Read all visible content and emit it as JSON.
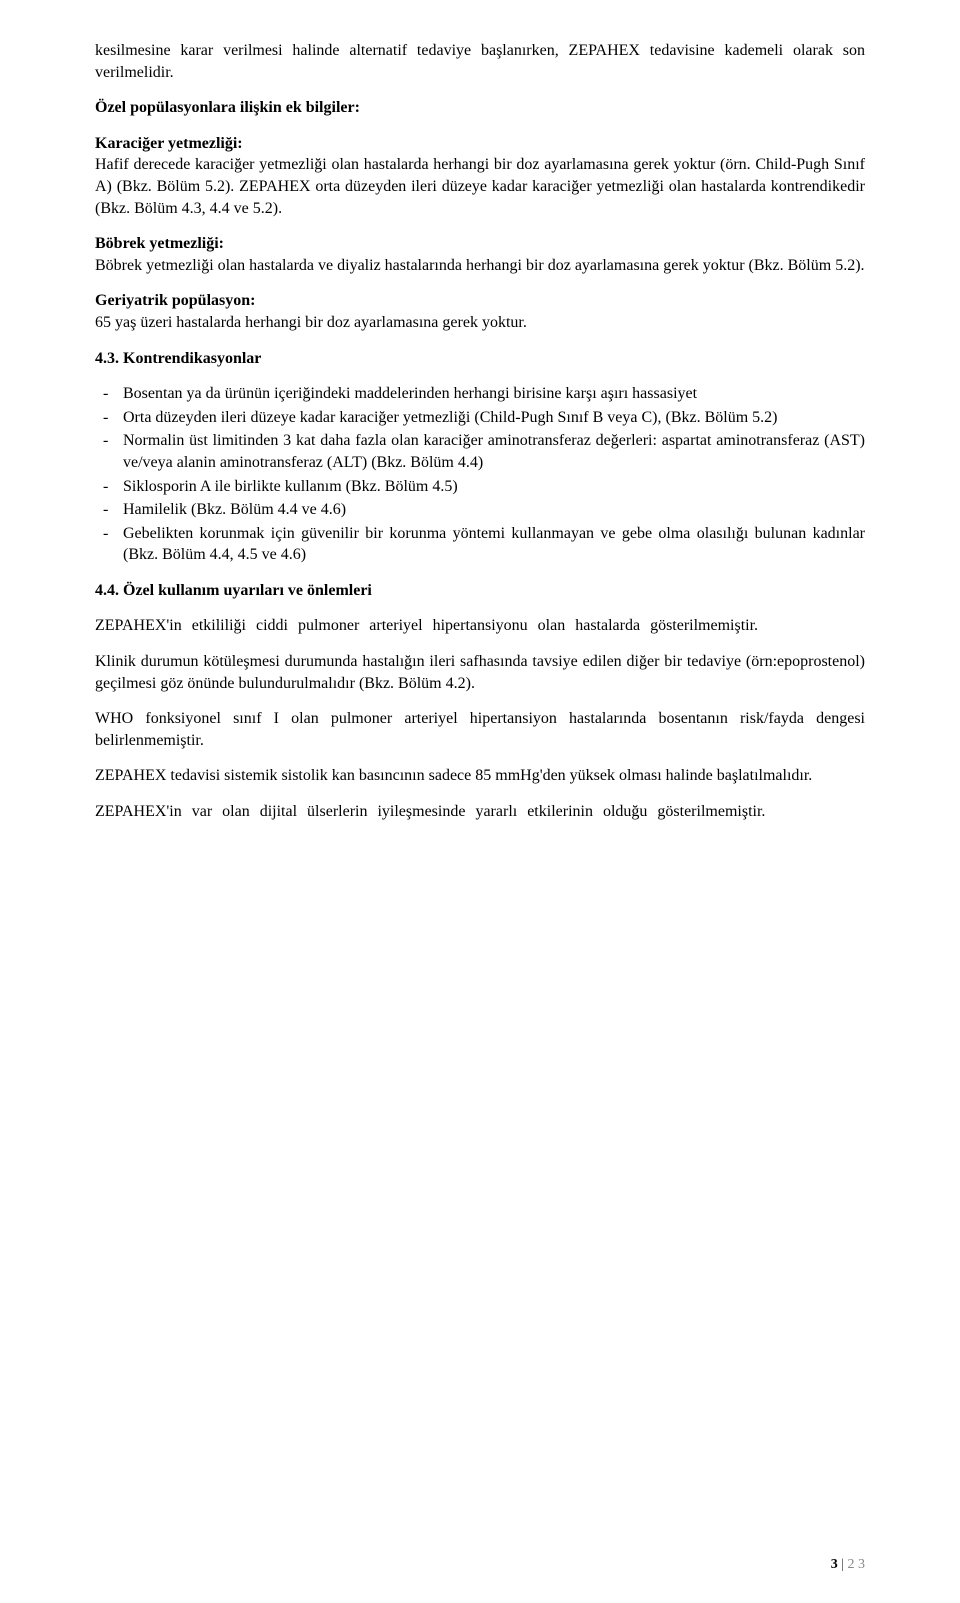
{
  "p1": "kesilmesine karar verilmesi halinde alternatif tedaviye başlanırken, ZEPAHEX tedavisine kademeli olarak son verilmelidir.",
  "p2": "Özel popülasyonlara ilişkin ek bilgiler:",
  "p3a": "Karaciğer yetmezliği:",
  "p3b": "Hafif derecede karaciğer yetmezliği olan hastalarda herhangi bir doz ayarlamasına gerek yoktur (örn. Child-Pugh Sınıf A) (Bkz. Bölüm 5.2). ZEPAHEX orta düzeyden ileri düzeye kadar karaciğer yetmezliği olan hastalarda kontrendikedir (Bkz. Bölüm 4.3, 4.4 ve 5.2).",
  "p4a": "Böbrek yetmezliği:",
  "p4b": "Böbrek yetmezliği olan hastalarda ve diyaliz hastalarında herhangi bir doz ayarlamasına gerek yoktur (Bkz. Bölüm 5.2).",
  "p5a": "Geriyatrik popülasyon:",
  "p5b": "65 yaş üzeri hastalarda herhangi bir doz ayarlamasına gerek yoktur.",
  "h43": "4.3. Kontrendikasyonlar",
  "li1": "Bosentan ya da ürünün içeriğindeki maddelerinden herhangi birisine karşı aşırı hassasiyet",
  "li2": "Orta düzeyden ileri düzeye kadar karaciğer yetmezliği (Child-Pugh Sınıf B veya C), (Bkz. Bölüm 5.2)",
  "li3": "Normalin üst limitinden 3 kat daha fazla olan karaciğer aminotransferaz değerleri: aspartat aminotransferaz (AST) ve/veya alanin aminotransferaz (ALT) (Bkz. Bölüm 4.4)",
  "li4": "Siklosporin A ile birlikte kullanım (Bkz. Bölüm 4.5)",
  "li5": "Hamilelik (Bkz. Bölüm 4.4 ve 4.6)",
  "li6": "Gebelikten korunmak için güvenilir bir korunma yöntemi kullanmayan ve gebe olma olasılığı bulunan kadınlar (Bkz. Bölüm 4.4, 4.5 ve 4.6)",
  "h44": "4.4. Özel kullanım uyarıları ve önlemleri",
  "p6": "ZEPAHEX'in etkililiği ciddi pulmoner arteriyel hipertansiyonu olan hastalarda gösterilmemiştir.",
  "p7": "Klinik durumun kötüleşmesi durumunda hastalığın ileri safhasında tavsiye edilen diğer bir tedaviye (örn:epoprostenol) geçilmesi göz önünde bulundurulmalıdır (Bkz. Bölüm 4.2).",
  "p8": "WHO fonksiyonel sınıf I olan pulmoner arteriyel hipertansiyon hastalarında bosentanın risk/fayda dengesi belirlenmemiştir.",
  "p9": "ZEPAHEX tedavisi sistemik sistolik kan basıncının sadece 85 mmHg'den yüksek olması halinde başlatılmalıdır.",
  "p10": "ZEPAHEX'in var olan dijital ülserlerin iyileşmesinde yararlı etkilerinin olduğu gösterilmemiştir.",
  "footer_page": "3",
  "footer_total": "2 3"
}
